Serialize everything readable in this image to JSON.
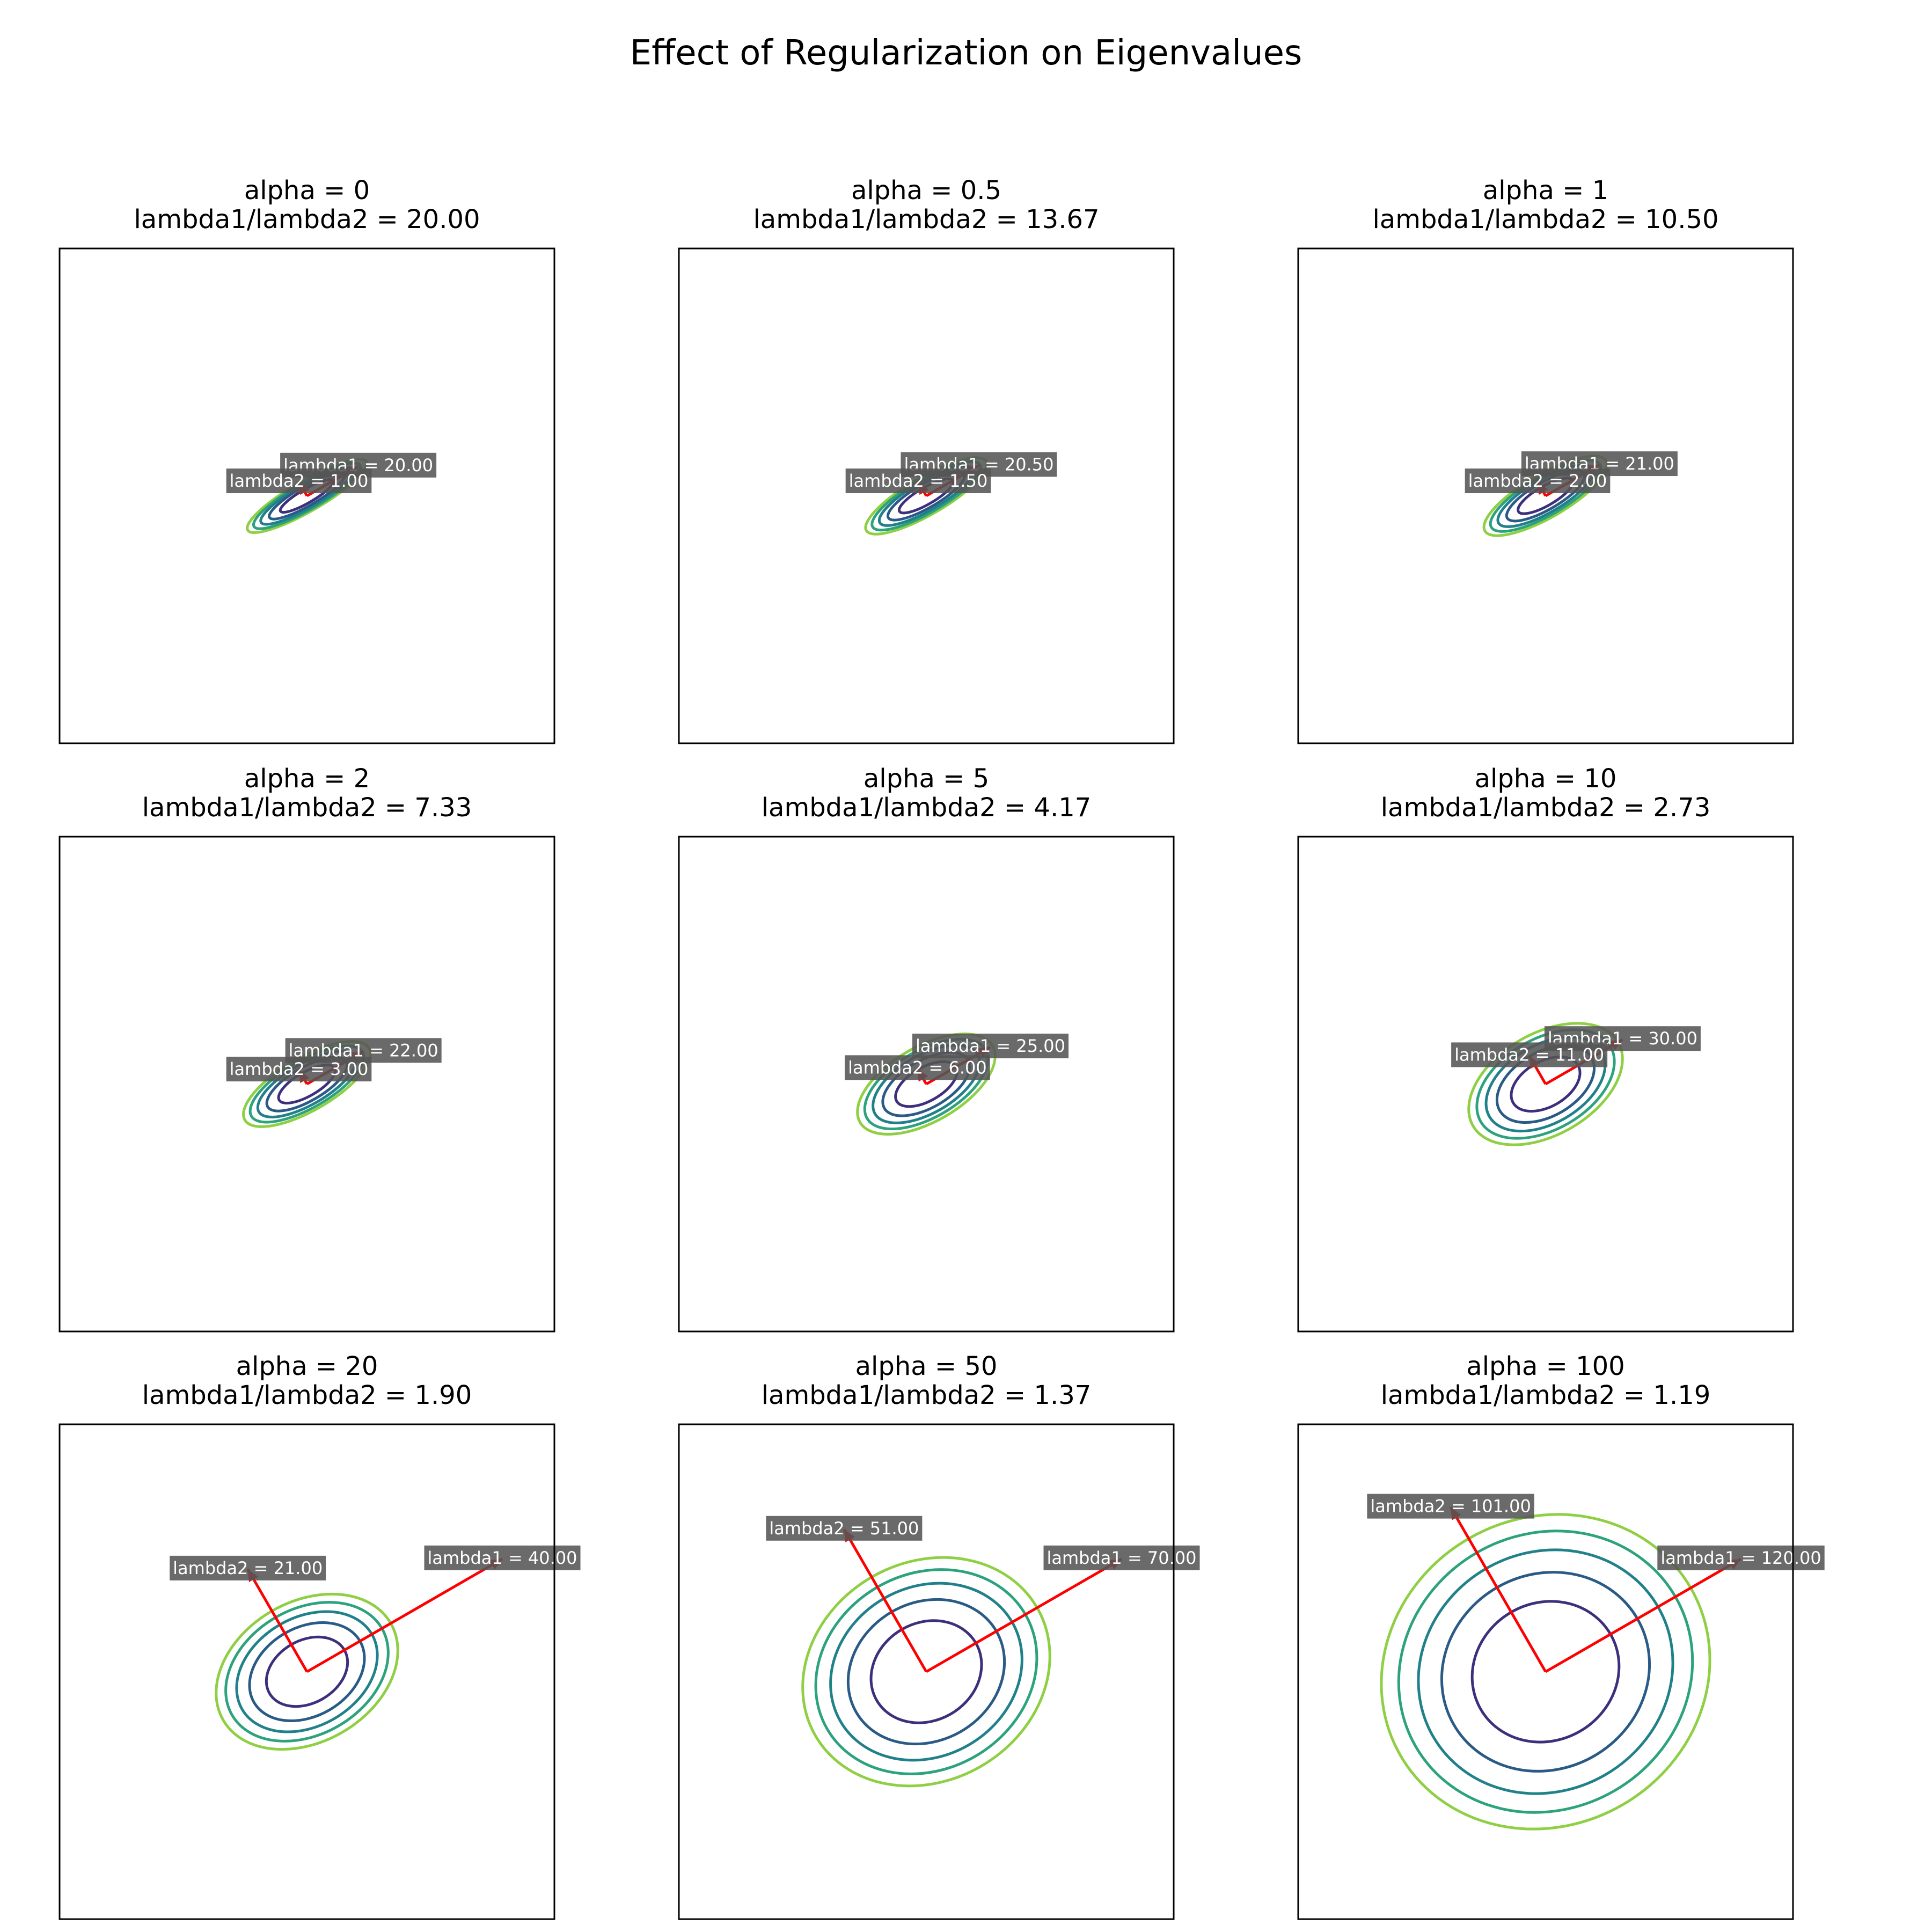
{
  "figure": {
    "title": "Effect of Regularization on Eigenvalues"
  },
  "colors": {
    "contours": [
      "#3e2f7c",
      "#2a5a86",
      "#21818a",
      "#2ca27d",
      "#8fcf44"
    ],
    "eigenvector": "#ff0000",
    "label_bg": "#555555",
    "label_text": "#ffffff"
  },
  "chart_data": [
    {
      "type": "contour",
      "title_line1": "alpha = 0",
      "title_line2": "lambda1/lambda2 = 20.00",
      "alpha": 0,
      "lambda1": 20.0,
      "lambda2": 1.0,
      "ratio": 20.0,
      "lambda1_label": "lambda1 = 20.00",
      "lambda2_label": "lambda2 = 1.00",
      "angle_deg": 30,
      "xlim": [
        -10,
        10
      ],
      "ylim": [
        -10,
        10
      ],
      "grid": false
    },
    {
      "type": "contour",
      "title_line1": "alpha = 0.5",
      "title_line2": "lambda1/lambda2 = 13.67",
      "alpha": 0.5,
      "lambda1": 20.5,
      "lambda2": 1.5,
      "ratio": 13.67,
      "lambda1_label": "lambda1 = 20.50",
      "lambda2_label": "lambda2 = 1.50",
      "angle_deg": 30,
      "xlim": [
        -10,
        10
      ],
      "ylim": [
        -10,
        10
      ],
      "grid": false
    },
    {
      "type": "contour",
      "title_line1": "alpha = 1",
      "title_line2": "lambda1/lambda2 = 10.50",
      "alpha": 1,
      "lambda1": 21.0,
      "lambda2": 2.0,
      "ratio": 10.5,
      "lambda1_label": "lambda1 = 21.00",
      "lambda2_label": "lambda2 = 2.00",
      "angle_deg": 30,
      "xlim": [
        -10,
        10
      ],
      "ylim": [
        -10,
        10
      ],
      "grid": false
    },
    {
      "type": "contour",
      "title_line1": "alpha = 2",
      "title_line2": "lambda1/lambda2 = 7.33",
      "alpha": 2,
      "lambda1": 22.0,
      "lambda2": 3.0,
      "ratio": 7.33,
      "lambda1_label": "lambda1 = 22.00",
      "lambda2_label": "lambda2 = 3.00",
      "angle_deg": 30,
      "xlim": [
        -10,
        10
      ],
      "ylim": [
        -10,
        10
      ],
      "grid": false
    },
    {
      "type": "contour",
      "title_line1": "alpha = 5",
      "title_line2": "lambda1/lambda2 = 4.17",
      "alpha": 5,
      "lambda1": 25.0,
      "lambda2": 6.0,
      "ratio": 4.17,
      "lambda1_label": "lambda1 = 25.00",
      "lambda2_label": "lambda2 = 6.00",
      "angle_deg": 30,
      "xlim": [
        -10,
        10
      ],
      "ylim": [
        -10,
        10
      ],
      "grid": false
    },
    {
      "type": "contour",
      "title_line1": "alpha = 10",
      "title_line2": "lambda1/lambda2 = 2.73",
      "alpha": 10,
      "lambda1": 30.0,
      "lambda2": 11.0,
      "ratio": 2.73,
      "lambda1_label": "lambda1 = 30.00",
      "lambda2_label": "lambda2 = 11.00",
      "angle_deg": 30,
      "xlim": [
        -10,
        10
      ],
      "ylim": [
        -10,
        10
      ],
      "grid": false
    },
    {
      "type": "contour",
      "title_line1": "alpha = 20",
      "title_line2": "lambda1/lambda2 = 1.90",
      "alpha": 20,
      "lambda1": 40.0,
      "lambda2": 21.0,
      "ratio": 1.9,
      "lambda1_label": "lambda1 = 40.00",
      "lambda2_label": "lambda2 = 21.00",
      "angle_deg": 30,
      "xlim": [
        -10,
        10
      ],
      "ylim": [
        -10,
        10
      ],
      "grid": false
    },
    {
      "type": "contour",
      "title_line1": "alpha = 50",
      "title_line2": "lambda1/lambda2 = 1.37",
      "alpha": 50,
      "lambda1": 70.0,
      "lambda2": 51.0,
      "ratio": 1.37,
      "lambda1_label": "lambda1 = 70.00",
      "lambda2_label": "lambda2 = 51.00",
      "angle_deg": 30,
      "xlim": [
        -10,
        10
      ],
      "ylim": [
        -10,
        10
      ],
      "grid": false
    },
    {
      "type": "contour",
      "title_line1": "alpha = 100",
      "title_line2": "lambda1/lambda2 = 1.19",
      "alpha": 100,
      "lambda1": 120.0,
      "lambda2": 101.0,
      "ratio": 1.19,
      "lambda1_label": "lambda1 = 120.00",
      "lambda2_label": "lambda2 = 101.00",
      "angle_deg": 30,
      "xlim": [
        -10,
        10
      ],
      "ylim": [
        -10,
        10
      ],
      "grid": false
    }
  ]
}
